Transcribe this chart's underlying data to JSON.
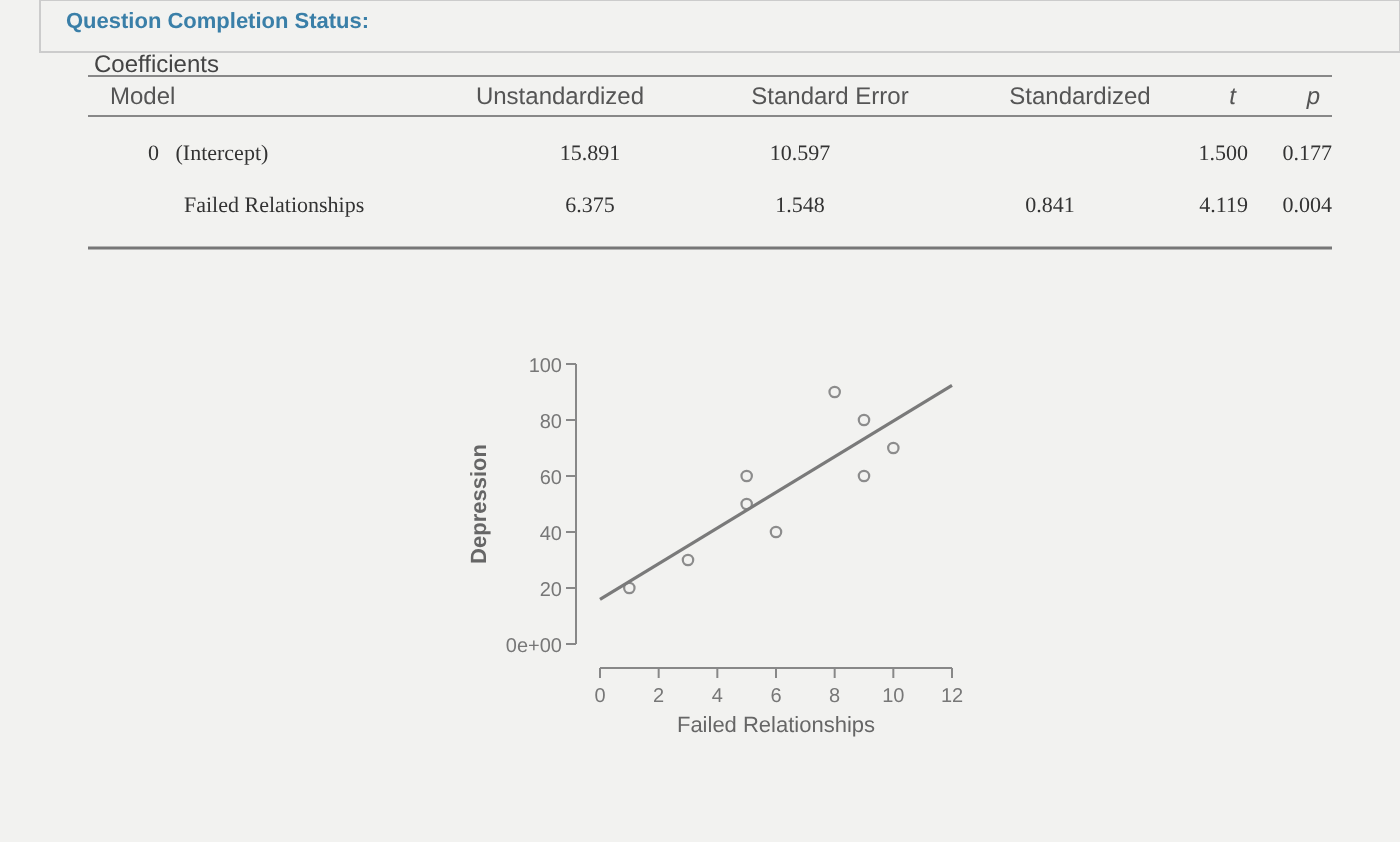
{
  "chart_data": [
    {
      "type": "other",
      "title": "Coefficients",
      "annotations": [
        "Question Completion Status:"
      ],
      "categories": [
        "Model",
        "Unstandardized",
        "Standard Error",
        "Standardized",
        "t",
        "p"
      ],
      "y_categories": [
        "0   (Intercept)",
        "Failed Relationships"
      ],
      "cell_labels": [
        [
          "15.891",
          "10.597",
          null,
          "1.500",
          "0.177"
        ],
        [
          "6.375",
          "1.548",
          "0.841",
          "4.119",
          "0.004"
        ]
      ]
    },
    {
      "type": "scatter",
      "xlabel": "Failed Relationships",
      "ylabel": "Depression",
      "xlim": [
        0,
        12
      ],
      "xticks": [
        0,
        2,
        4,
        6,
        8,
        10,
        12
      ],
      "ylim": [
        0,
        100
      ],
      "yticks": [
        {
          "value": 0,
          "label": "0e+00"
        },
        20,
        40,
        60,
        80,
        100
      ],
      "series": [
        {
          "type": "scatter",
          "marker": "circle",
          "color": "#8c8c8c",
          "x": [
            1,
            3,
            5,
            5,
            6,
            8,
            9,
            9,
            10
          ],
          "values": [
            20,
            30,
            60,
            50,
            40,
            90,
            80,
            60,
            70
          ]
        },
        {
          "type": "line",
          "color": "#7a7a7a",
          "x": [
            0,
            12
          ],
          "values": [
            15.9,
            92.4
          ]
        }
      ]
    }
  ]
}
